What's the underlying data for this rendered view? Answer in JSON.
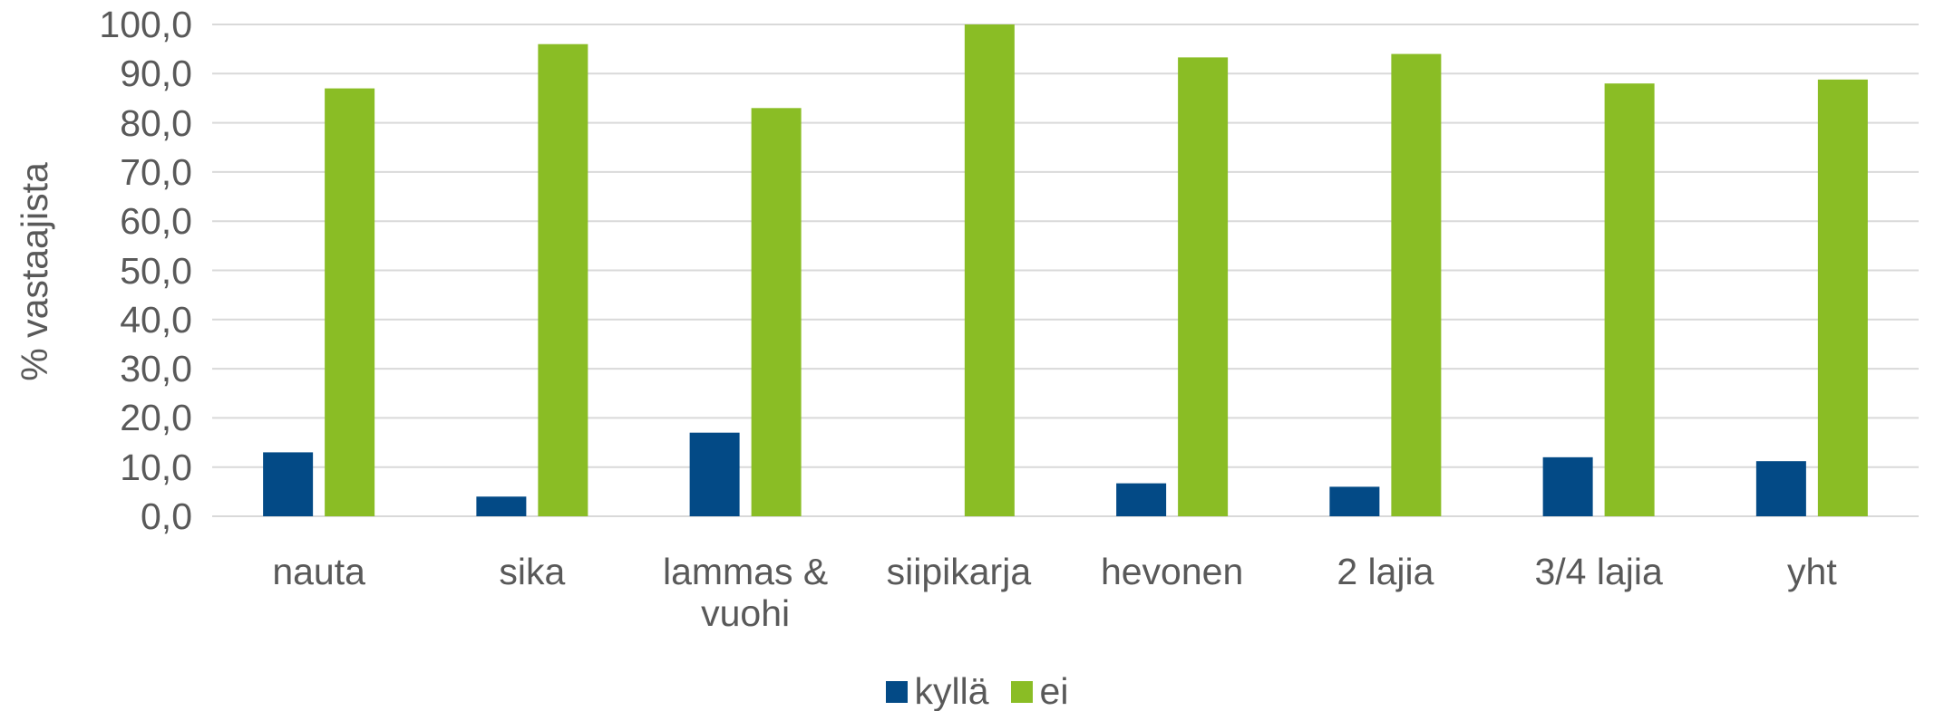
{
  "chart_data": {
    "type": "bar",
    "y_label": "% vastaajista",
    "categories": [
      "nauta",
      "sika",
      "lammas & vuohi",
      "siipikarja",
      "hevonen",
      "2 lajia",
      "3/4 lajia",
      "yht"
    ],
    "series": [
      {
        "name": "kyllä",
        "color": "#034a86",
        "values": [
          13.0,
          4.0,
          17.0,
          0.0,
          6.7,
          6.0,
          12.0,
          11.2
        ]
      },
      {
        "name": "ei",
        "color": "#8abd25",
        "values": [
          87.0,
          96.0,
          83.0,
          100.0,
          93.3,
          94.0,
          88.0,
          88.8
        ]
      }
    ],
    "ylim": [
      0,
      100
    ],
    "yticks": [
      {
        "value": 0,
        "label": "0,0"
      },
      {
        "value": 10,
        "label": "10,0"
      },
      {
        "value": 20,
        "label": "20,0"
      },
      {
        "value": 30,
        "label": "30,0"
      },
      {
        "value": 40,
        "label": "40,0"
      },
      {
        "value": 50,
        "label": "50,0"
      },
      {
        "value": 60,
        "label": "60,0"
      },
      {
        "value": 70,
        "label": "70,0"
      },
      {
        "value": 80,
        "label": "80,0"
      },
      {
        "value": 90,
        "label": "90,0"
      },
      {
        "value": 100,
        "label": "100,0"
      }
    ],
    "grid": true,
    "legend": "bottom"
  }
}
